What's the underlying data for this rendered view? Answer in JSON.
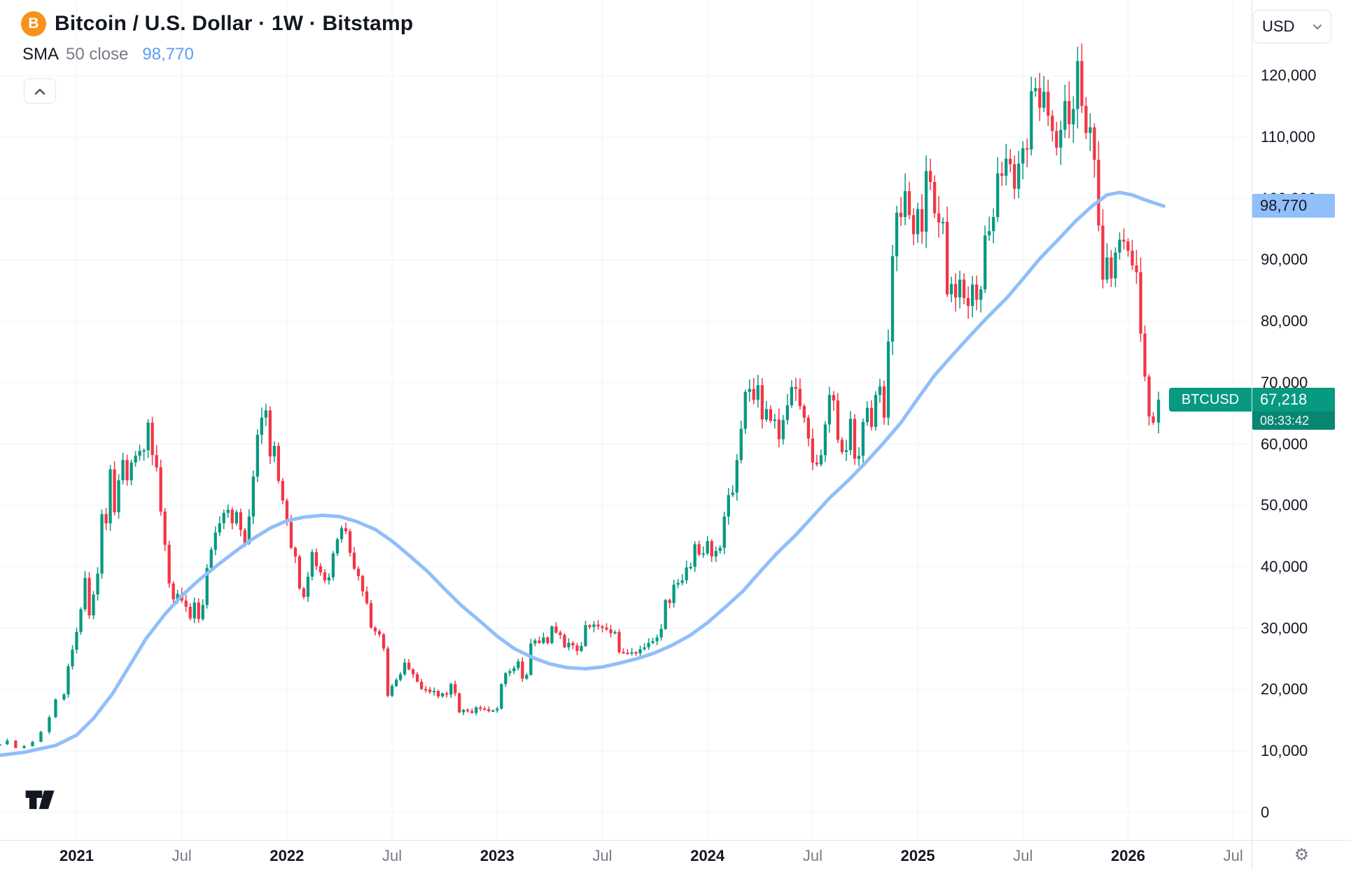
{
  "header": {
    "symbol_title": "Bitcoin / U.S. Dollar · 1W · Bitstamp",
    "indicator": {
      "name": "SMA",
      "params": "50 close",
      "value": "98,770"
    },
    "currency_button": "USD"
  },
  "scale": {
    "sma_badge": "98,770",
    "price_badge": "67,218",
    "countdown": "08:33:42",
    "symbol_tag": "BTCUSD"
  },
  "colors": {
    "up": "#089981",
    "down": "#f23645",
    "sma_line": "#90bff9",
    "sma_value_text": "#5b9cf5",
    "bitcoin_orange": "#f7931a",
    "grid": "#f0f3fa",
    "axis_text": "#131722",
    "muted_text": "#787b86"
  },
  "chart_data": {
    "type": "candlestick",
    "title": "Bitcoin / U.S. Dollar",
    "interval": "1W",
    "exchange": "Bitstamp",
    "quote_currency": "USD",
    "last_price": 67218,
    "sma_period": 50,
    "sma_value": 98770,
    "y_axis": {
      "ticks": [
        0,
        10000,
        20000,
        30000,
        40000,
        50000,
        60000,
        70000,
        80000,
        90000,
        100000,
        110000,
        120000
      ],
      "range": [
        0,
        132300
      ],
      "grid": true
    },
    "x_axis": {
      "range": [
        2020.63,
        2026.68
      ],
      "labels": [
        {
          "t": 2021.0,
          "text": "2021",
          "major": true
        },
        {
          "t": 2021.5,
          "text": "Jul",
          "major": false
        },
        {
          "t": 2022.0,
          "text": "2022",
          "major": true
        },
        {
          "t": 2022.5,
          "text": "Jul",
          "major": false
        },
        {
          "t": 2023.0,
          "text": "2023",
          "major": true
        },
        {
          "t": 2023.5,
          "text": "Jul",
          "major": false
        },
        {
          "t": 2024.0,
          "text": "2024",
          "major": true
        },
        {
          "t": 2024.5,
          "text": "Jul",
          "major": false
        },
        {
          "t": 2025.0,
          "text": "2025",
          "major": true
        },
        {
          "t": 2025.5,
          "text": "Jul",
          "major": false
        },
        {
          "t": 2026.0,
          "text": "2026",
          "major": true
        },
        {
          "t": 2026.5,
          "text": "Jul",
          "major": false
        }
      ]
    },
    "close_path": [
      [
        2020.634,
        11100
      ],
      [
        2020.67,
        11700
      ],
      [
        2020.71,
        10500
      ],
      [
        2020.75,
        10800
      ],
      [
        2020.79,
        11500
      ],
      [
        2020.83,
        13100
      ],
      [
        2020.87,
        15500
      ],
      [
        2020.9,
        18400
      ],
      [
        2020.94,
        19200
      ],
      [
        2020.96,
        23800
      ],
      [
        2020.98,
        26500
      ],
      [
        2021.0,
        29400
      ],
      [
        2021.02,
        33100
      ],
      [
        2021.04,
        38200
      ],
      [
        2021.06,
        32100
      ],
      [
        2021.08,
        35500
      ],
      [
        2021.1,
        38900
      ],
      [
        2021.12,
        48600
      ],
      [
        2021.14,
        47100
      ],
      [
        2021.16,
        55900
      ],
      [
        2021.18,
        48900
      ],
      [
        2021.2,
        54100
      ],
      [
        2021.22,
        57400
      ],
      [
        2021.24,
        54100
      ],
      [
        2021.26,
        57000
      ],
      [
        2021.28,
        58100
      ],
      [
        2021.3,
        58900
      ],
      [
        2021.32,
        59000
      ],
      [
        2021.34,
        63500
      ],
      [
        2021.36,
        58200
      ],
      [
        2021.38,
        56200
      ],
      [
        2021.4,
        49000
      ],
      [
        2021.42,
        43600
      ],
      [
        2021.44,
        37300
      ],
      [
        2021.46,
        34700
      ],
      [
        2021.48,
        35600
      ],
      [
        2021.5,
        34500
      ],
      [
        2021.52,
        33500
      ],
      [
        2021.54,
        31600
      ],
      [
        2021.56,
        34200
      ],
      [
        2021.58,
        31500
      ],
      [
        2021.6,
        33800
      ],
      [
        2021.62,
        39800
      ],
      [
        2021.64,
        42800
      ],
      [
        2021.66,
        45600
      ],
      [
        2021.68,
        47100
      ],
      [
        2021.7,
        48800
      ],
      [
        2021.72,
        49300
      ],
      [
        2021.74,
        47100
      ],
      [
        2021.76,
        48900
      ],
      [
        2021.78,
        46000
      ],
      [
        2021.8,
        43800
      ],
      [
        2021.82,
        48200
      ],
      [
        2021.84,
        54700
      ],
      [
        2021.86,
        61500
      ],
      [
        2021.88,
        64300
      ],
      [
        2021.9,
        65500
      ],
      [
        2021.92,
        58000
      ],
      [
        2021.94,
        59700
      ],
      [
        2021.96,
        54000
      ],
      [
        2021.98,
        50800
      ],
      [
        2022.0,
        47300
      ],
      [
        2022.02,
        43100
      ],
      [
        2022.04,
        41700
      ],
      [
        2022.06,
        36500
      ],
      [
        2022.08,
        35100
      ],
      [
        2022.1,
        38400
      ],
      [
        2022.12,
        42400
      ],
      [
        2022.14,
        40100
      ],
      [
        2022.16,
        39100
      ],
      [
        2022.18,
        37800
      ],
      [
        2022.2,
        38300
      ],
      [
        2022.22,
        42200
      ],
      [
        2022.24,
        44500
      ],
      [
        2022.26,
        46300
      ],
      [
        2022.28,
        45800
      ],
      [
        2022.3,
        42300
      ],
      [
        2022.32,
        39700
      ],
      [
        2022.34,
        38500
      ],
      [
        2022.36,
        36000
      ],
      [
        2022.38,
        34100
      ],
      [
        2022.4,
        30100
      ],
      [
        2022.42,
        29500
      ],
      [
        2022.44,
        29000
      ],
      [
        2022.46,
        26700
      ],
      [
        2022.48,
        19000
      ],
      [
        2022.5,
        20600
      ],
      [
        2022.52,
        21600
      ],
      [
        2022.54,
        22500
      ],
      [
        2022.56,
        24400
      ],
      [
        2022.58,
        23300
      ],
      [
        2022.6,
        22500
      ],
      [
        2022.62,
        21300
      ],
      [
        2022.64,
        20100
      ],
      [
        2022.66,
        20000
      ],
      [
        2022.68,
        19600
      ],
      [
        2022.7,
        19800
      ],
      [
        2022.72,
        18900
      ],
      [
        2022.74,
        19400
      ],
      [
        2022.76,
        19200
      ],
      [
        2022.78,
        20900
      ],
      [
        2022.8,
        19400
      ],
      [
        2022.82,
        16300
      ],
      [
        2022.84,
        16700
      ],
      [
        2022.86,
        16500
      ],
      [
        2022.88,
        16200
      ],
      [
        2022.9,
        17100
      ],
      [
        2022.92,
        16900
      ],
      [
        2022.94,
        16800
      ],
      [
        2022.96,
        16500
      ],
      [
        2022.98,
        16600
      ],
      [
        2023.0,
        16900
      ],
      [
        2023.02,
        20900
      ],
      [
        2023.04,
        22700
      ],
      [
        2023.06,
        23000
      ],
      [
        2023.08,
        23500
      ],
      [
        2023.1,
        24600
      ],
      [
        2023.12,
        21800
      ],
      [
        2023.14,
        22400
      ],
      [
        2023.16,
        27500
      ],
      [
        2023.18,
        28000
      ],
      [
        2023.2,
        27600
      ],
      [
        2023.22,
        28500
      ],
      [
        2023.24,
        27600
      ],
      [
        2023.26,
        30300
      ],
      [
        2023.28,
        29300
      ],
      [
        2023.3,
        28900
      ],
      [
        2023.32,
        26900
      ],
      [
        2023.34,
        27600
      ],
      [
        2023.36,
        27200
      ],
      [
        2023.38,
        26300
      ],
      [
        2023.4,
        27100
      ],
      [
        2023.42,
        30500
      ],
      [
        2023.44,
        30200
      ],
      [
        2023.46,
        30600
      ],
      [
        2023.48,
        30300
      ],
      [
        2023.5,
        30100
      ],
      [
        2023.52,
        29800
      ],
      [
        2023.54,
        29200
      ],
      [
        2023.56,
        29400
      ],
      [
        2023.58,
        26100
      ],
      [
        2023.6,
        26000
      ],
      [
        2023.62,
        25900
      ],
      [
        2023.64,
        26100
      ],
      [
        2023.66,
        25900
      ],
      [
        2023.68,
        26600
      ],
      [
        2023.7,
        26900
      ],
      [
        2023.72,
        27600
      ],
      [
        2023.74,
        27900
      ],
      [
        2023.76,
        28500
      ],
      [
        2023.78,
        29900
      ],
      [
        2023.8,
        34600
      ],
      [
        2023.82,
        34100
      ],
      [
        2023.84,
        37100
      ],
      [
        2023.86,
        37400
      ],
      [
        2023.88,
        37800
      ],
      [
        2023.9,
        39900
      ],
      [
        2023.92,
        40000
      ],
      [
        2023.94,
        43700
      ],
      [
        2023.96,
        42000
      ],
      [
        2023.98,
        42200
      ],
      [
        2024.0,
        44200
      ],
      [
        2024.02,
        41700
      ],
      [
        2024.04,
        42600
      ],
      [
        2024.06,
        43100
      ],
      [
        2024.08,
        48200
      ],
      [
        2024.1,
        51700
      ],
      [
        2024.12,
        52100
      ],
      [
        2024.14,
        57400
      ],
      [
        2024.16,
        62500
      ],
      [
        2024.18,
        68500
      ],
      [
        2024.2,
        69000
      ],
      [
        2024.22,
        67200
      ],
      [
        2024.24,
        69600
      ],
      [
        2024.26,
        64000
      ],
      [
        2024.28,
        65700
      ],
      [
        2024.3,
        63800
      ],
      [
        2024.32,
        64000
      ],
      [
        2024.34,
        60800
      ],
      [
        2024.36,
        63900
      ],
      [
        2024.38,
        66300
      ],
      [
        2024.4,
        69300
      ],
      [
        2024.42,
        69000
      ],
      [
        2024.44,
        66200
      ],
      [
        2024.46,
        64300
      ],
      [
        2024.48,
        60900
      ],
      [
        2024.5,
        57000
      ],
      [
        2024.52,
        56700
      ],
      [
        2024.54,
        58200
      ],
      [
        2024.56,
        63200
      ],
      [
        2024.58,
        68000
      ],
      [
        2024.6,
        67100
      ],
      [
        2024.62,
        60700
      ],
      [
        2024.64,
        58700
      ],
      [
        2024.66,
        59000
      ],
      [
        2024.68,
        64100
      ],
      [
        2024.7,
        57600
      ],
      [
        2024.72,
        58100
      ],
      [
        2024.74,
        63600
      ],
      [
        2024.76,
        65900
      ],
      [
        2024.78,
        62800
      ],
      [
        2024.8,
        68000
      ],
      [
        2024.82,
        69400
      ],
      [
        2024.84,
        64300
      ],
      [
        2024.86,
        76700
      ],
      [
        2024.88,
        90600
      ],
      [
        2024.9,
        97700
      ],
      [
        2024.92,
        97000
      ],
      [
        2024.94,
        101200
      ],
      [
        2024.96,
        97300
      ],
      [
        2024.98,
        94200
      ],
      [
        2025.0,
        98300
      ],
      [
        2025.02,
        94600
      ],
      [
        2025.04,
        104500
      ],
      [
        2025.06,
        102700
      ],
      [
        2025.08,
        97600
      ],
      [
        2025.1,
        96100
      ],
      [
        2025.12,
        96200
      ],
      [
        2025.14,
        84400
      ],
      [
        2025.16,
        86100
      ],
      [
        2025.18,
        83900
      ],
      [
        2025.2,
        86800
      ],
      [
        2025.22,
        83800
      ],
      [
        2025.24,
        82500
      ],
      [
        2025.26,
        86000
      ],
      [
        2025.28,
        83500
      ],
      [
        2025.3,
        85200
      ],
      [
        2025.32,
        94000
      ],
      [
        2025.34,
        94700
      ],
      [
        2025.36,
        97000
      ],
      [
        2025.38,
        104100
      ],
      [
        2025.4,
        103700
      ],
      [
        2025.42,
        106500
      ],
      [
        2025.44,
        105600
      ],
      [
        2025.46,
        101600
      ],
      [
        2025.48,
        105700
      ],
      [
        2025.5,
        108200
      ],
      [
        2025.52,
        108000
      ],
      [
        2025.54,
        117500
      ],
      [
        2025.56,
        118000
      ],
      [
        2025.58,
        114800
      ],
      [
        2025.6,
        117400
      ],
      [
        2025.62,
        113500
      ],
      [
        2025.64,
        111000
      ],
      [
        2025.66,
        108300
      ],
      [
        2025.68,
        111200
      ],
      [
        2025.7,
        115900
      ],
      [
        2025.72,
        112100
      ],
      [
        2025.74,
        114600
      ],
      [
        2025.76,
        122400
      ],
      [
        2025.78,
        115100
      ],
      [
        2025.8,
        110700
      ],
      [
        2025.82,
        111600
      ],
      [
        2025.84,
        106300
      ],
      [
        2025.86,
        95600
      ],
      [
        2025.88,
        86800
      ],
      [
        2025.9,
        90400
      ],
      [
        2025.92,
        87000
      ],
      [
        2025.94,
        91200
      ],
      [
        2025.96,
        93300
      ],
      [
        2025.98,
        93000
      ],
      [
        2026.0,
        91500
      ],
      [
        2026.02,
        89100
      ],
      [
        2026.04,
        88000
      ],
      [
        2026.06,
        78000
      ],
      [
        2026.08,
        71000
      ],
      [
        2026.1,
        64500
      ],
      [
        2026.12,
        63500
      ],
      [
        2026.145,
        67218
      ]
    ],
    "sma_path": [
      [
        2020.634,
        9300
      ],
      [
        2020.75,
        9800
      ],
      [
        2020.9,
        10900
      ],
      [
        2021.0,
        12600
      ],
      [
        2021.08,
        15300
      ],
      [
        2021.17,
        19300
      ],
      [
        2021.25,
        23800
      ],
      [
        2021.33,
        28300
      ],
      [
        2021.42,
        32300
      ],
      [
        2021.5,
        35300
      ],
      [
        2021.58,
        37800
      ],
      [
        2021.67,
        40300
      ],
      [
        2021.75,
        42400
      ],
      [
        2021.83,
        44400
      ],
      [
        2021.92,
        46300
      ],
      [
        2022.0,
        47500
      ],
      [
        2022.08,
        48100
      ],
      [
        2022.17,
        48400
      ],
      [
        2022.25,
        48200
      ],
      [
        2022.33,
        47400
      ],
      [
        2022.42,
        46100
      ],
      [
        2022.5,
        44200
      ],
      [
        2022.58,
        41900
      ],
      [
        2022.67,
        39200
      ],
      [
        2022.75,
        36400
      ],
      [
        2022.83,
        33700
      ],
      [
        2022.92,
        31100
      ],
      [
        2023.0,
        28700
      ],
      [
        2023.08,
        26700
      ],
      [
        2023.17,
        25200
      ],
      [
        2023.25,
        24200
      ],
      [
        2023.33,
        23600
      ],
      [
        2023.42,
        23400
      ],
      [
        2023.5,
        23700
      ],
      [
        2023.58,
        24300
      ],
      [
        2023.67,
        25100
      ],
      [
        2023.75,
        26000
      ],
      [
        2023.83,
        27200
      ],
      [
        2023.92,
        28900
      ],
      [
        2024.0,
        30900
      ],
      [
        2024.08,
        33300
      ],
      [
        2024.17,
        36100
      ],
      [
        2024.25,
        39200
      ],
      [
        2024.33,
        42200
      ],
      [
        2024.42,
        45200
      ],
      [
        2024.5,
        48200
      ],
      [
        2024.58,
        51200
      ],
      [
        2024.67,
        54100
      ],
      [
        2024.75,
        56900
      ],
      [
        2024.83,
        59900
      ],
      [
        2024.92,
        63500
      ],
      [
        2025.0,
        67400
      ],
      [
        2025.08,
        71200
      ],
      [
        2025.17,
        74700
      ],
      [
        2025.25,
        77700
      ],
      [
        2025.33,
        80600
      ],
      [
        2025.42,
        83700
      ],
      [
        2025.5,
        86900
      ],
      [
        2025.58,
        90200
      ],
      [
        2025.67,
        93400
      ],
      [
        2025.75,
        96300
      ],
      [
        2025.83,
        98800
      ],
      [
        2025.9,
        100600
      ],
      [
        2025.96,
        101000
      ],
      [
        2026.02,
        100600
      ],
      [
        2026.08,
        99800
      ],
      [
        2026.17,
        98770
      ]
    ]
  }
}
